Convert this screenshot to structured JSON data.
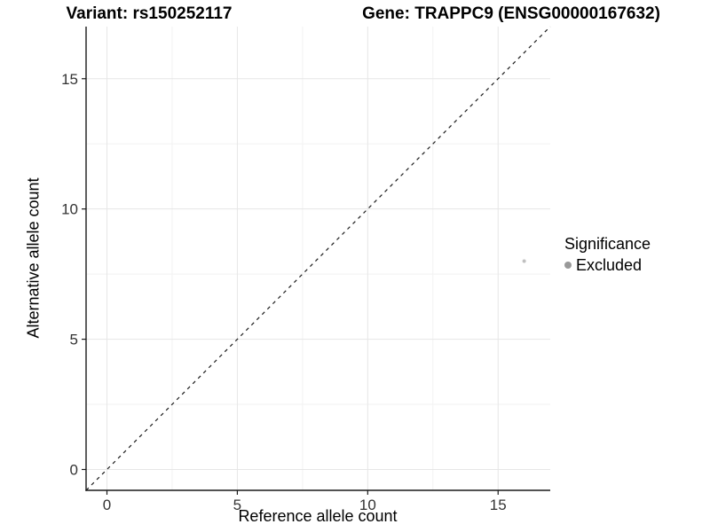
{
  "chart_data": {
    "type": "scatter",
    "title_left": "Variant: rs150252117",
    "title_right": "Gene: TRAPPC9 (ENSG00000167632)",
    "xlabel": "Reference allele count",
    "ylabel": "Alternative allele count",
    "xlim": [
      -0.8,
      17.0
    ],
    "ylim": [
      -0.8,
      17.0
    ],
    "major_ticks": [
      0,
      5,
      10,
      15
    ],
    "minor_ticks": [
      2.5,
      7.5,
      12.5
    ],
    "grid": true,
    "points": [
      {
        "x": 16,
        "y": 8,
        "significance": "Excluded"
      }
    ],
    "reference_line": {
      "description": "identity line y = x",
      "style": "dashed"
    },
    "legend": {
      "title": "Significance",
      "position": "right",
      "items": [
        {
          "label": "Excluded",
          "color": "#999999"
        }
      ]
    },
    "colors": {
      "excluded_point": "#c0c0c0",
      "legend_key": "#999999",
      "grid_major": "#e6e6e6",
      "grid_minor": "#f2f2f2",
      "axis": "#1a1a1a",
      "tick_text": "#333333"
    }
  }
}
